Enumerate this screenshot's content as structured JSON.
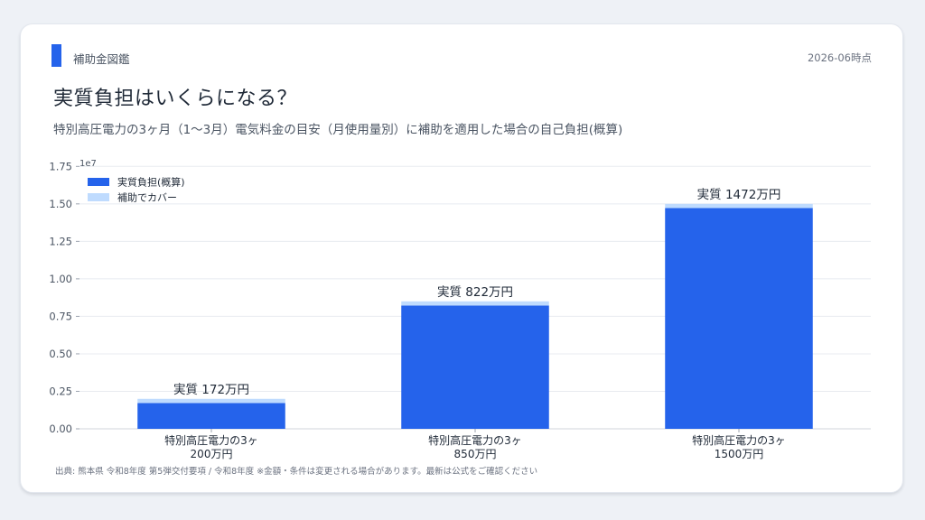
{
  "header": {
    "brand": "補助金図鑑",
    "date": "2026-06時点",
    "title": "実質負担はいくらになる？",
    "subtitle": "特別高圧電力の3ヶ月（1〜3月）電気料金の目安（月使用量別）に補助を適用した場合の自己負担(概算)"
  },
  "footnote": "出典: 熊本県 令和8年度 第5弾交付要項 / 令和8年度 ※金額・条件は変更される場合があります。最新は公式をご確認ください",
  "chart_data": {
    "type": "bar",
    "stacked": true,
    "categories": [
      [
        "特別高圧電力の3ヶ",
        "200万円"
      ],
      [
        "特別高圧電力の3ヶ",
        "850万円"
      ],
      [
        "特別高圧電力の3ヶ",
        "1500万円"
      ]
    ],
    "series": [
      {
        "name": "実質負担(概算)",
        "color": "#2563eb",
        "values": [
          1720000,
          8220000,
          14720000
        ]
      },
      {
        "name": "補助でカバー",
        "color": "#bfdbfe",
        "values": [
          280000,
          280000,
          280000
        ]
      }
    ],
    "data_labels": [
      "実質 172万円",
      "実質 822万円",
      "実質 1472万円"
    ],
    "y_offset_label": "1e7",
    "ylim": [
      0,
      18000000
    ],
    "yticks": [
      0,
      2500000,
      5000000,
      7500000,
      10000000,
      12500000,
      15000000,
      17500000
    ],
    "ytick_labels": [
      "0.00",
      "0.25",
      "0.50",
      "0.75",
      "1.00",
      "1.25",
      "1.50",
      "1.75"
    ],
    "grid": true,
    "legend_position": "top-left"
  }
}
